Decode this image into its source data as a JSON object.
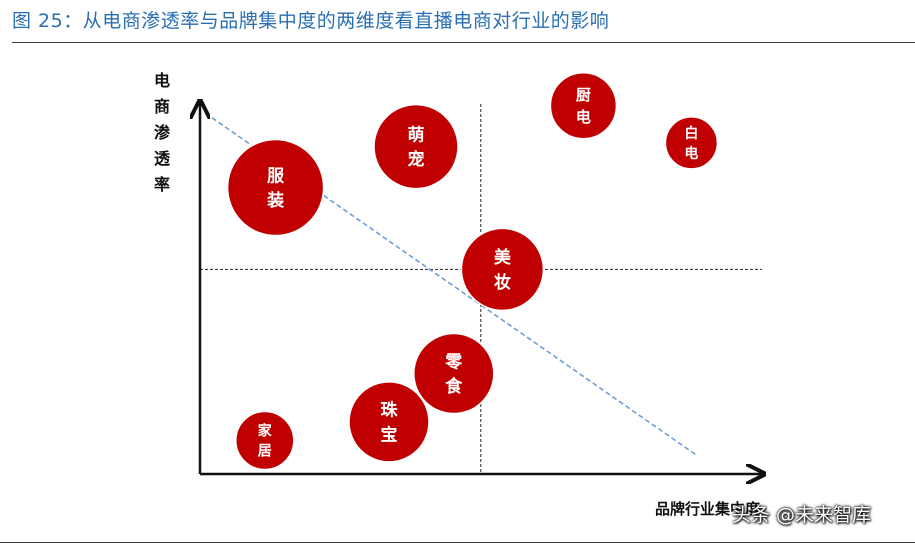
{
  "figure": {
    "title": "图 25：从电商渗透率与品牌集中度的两维度看直播电商对行业的影响"
  },
  "watermark": "头条 @未来智库",
  "chart_data": {
    "type": "scatter",
    "title": "",
    "xlabel": "品牌行业集中度",
    "ylabel": "电商渗透率",
    "xlim": [
      0,
      100
    ],
    "ylim": [
      0,
      100
    ],
    "grid": false,
    "legend": "none",
    "bubble_color": "#c00000",
    "trend_line_color": "#6d9ed8",
    "reference_lines": {
      "x": 52,
      "y": 55
    },
    "points": [
      {
        "name": "服装",
        "x": 14,
        "y": 77,
        "size": 48
      },
      {
        "name": "萌宠",
        "x": 40,
        "y": 88,
        "size": 42
      },
      {
        "name": "厨电",
        "x": 71,
        "y": 99,
        "size": 33
      },
      {
        "name": "白电",
        "x": 91,
        "y": 89,
        "size": 26
      },
      {
        "name": "美妆",
        "x": 56,
        "y": 55,
        "size": 41
      },
      {
        "name": "零食",
        "x": 47,
        "y": 27,
        "size": 40
      },
      {
        "name": "珠宝",
        "x": 35,
        "y": 14,
        "size": 40
      },
      {
        "name": "家居",
        "x": 12,
        "y": 9,
        "size": 29
      }
    ],
    "trend_line": {
      "from": [
        1,
        97
      ],
      "to": [
        92,
        5
      ]
    }
  }
}
